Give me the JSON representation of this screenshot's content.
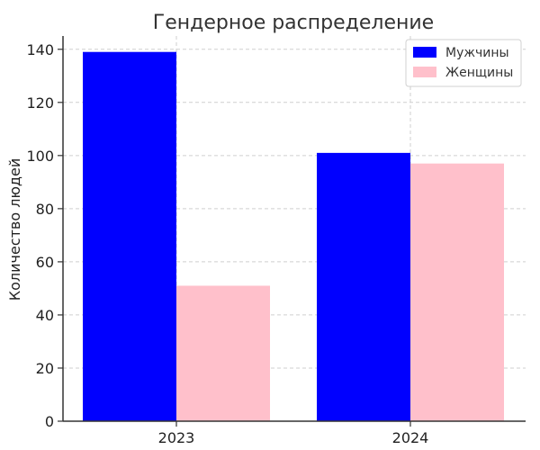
{
  "chart_data": {
    "type": "bar",
    "title": "Гендерное распределение",
    "xlabel": "",
    "ylabel": "Количество людей",
    "categories": [
      "2023",
      "2024"
    ],
    "series": [
      {
        "name": "Мужчины",
        "values": [
          139,
          101
        ],
        "color": "#0000ff"
      },
      {
        "name": "Женщины",
        "values": [
          51,
          97
        ],
        "color": "#ffc0cb"
      }
    ],
    "ylim": [
      0,
      145
    ],
    "yticks": [
      0,
      20,
      40,
      60,
      80,
      100,
      120,
      140
    ],
    "grid": true,
    "legend_position": "top-right"
  }
}
